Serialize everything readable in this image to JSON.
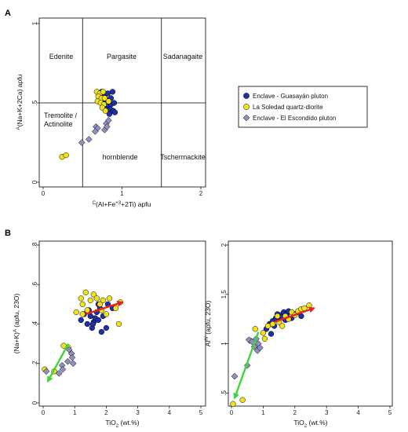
{
  "figure": {
    "panel_a_label": "A",
    "panel_b_label": "B"
  },
  "legend": [
    {
      "label": "Enclave - Guasayán pluton",
      "marker": "circle",
      "color": "#1f2fa8"
    },
    {
      "label": "La Soledad quartz-diorite",
      "marker": "circle",
      "color": "#f2e21a"
    },
    {
      "label": "Enclave - El Escondido pluton",
      "marker": "diamond",
      "color": "#8f8fc0"
    }
  ],
  "chart_data": [
    {
      "type": "scatter",
      "id": "A",
      "xlabel": "C(Al+Fe+3+2Ti) apfu",
      "ylabel": "A(Na+K+2Ca) apfu",
      "xlim": [
        0,
        2
      ],
      "ylim": [
        0,
        1
      ],
      "x_ticks": [
        "0",
        "1",
        "2"
      ],
      "y_ticks": [
        "0",
        ".5",
        "1"
      ],
      "field_boundaries": {
        "x": [
          0.5,
          1.5
        ],
        "y": [
          0.5
        ]
      },
      "field_labels": [
        "Edenite",
        "Pargasite",
        "Sadanagaite",
        "Tremolite /",
        "Actinolite",
        "hornblende",
        "Tschermackite"
      ],
      "series": [
        {
          "name": "Enclave - Guasayán pluton",
          "color": "#1f2fa8",
          "marker": "circle",
          "points": [
            [
              0.74,
              0.57
            ],
            [
              0.78,
              0.55
            ],
            [
              0.82,
              0.56
            ],
            [
              0.88,
              0.57
            ],
            [
              0.81,
              0.52
            ],
            [
              0.86,
              0.53
            ],
            [
              0.78,
              0.5
            ],
            [
              0.82,
              0.49
            ],
            [
              0.86,
              0.49
            ],
            [
              0.9,
              0.5
            ],
            [
              0.8,
              0.46
            ],
            [
              0.85,
              0.46
            ],
            [
              0.89,
              0.45
            ],
            [
              0.84,
              0.43
            ],
            [
              0.91,
              0.44
            ]
          ]
        },
        {
          "name": "La Soledad quartz-diorite",
          "color": "#f2e21a",
          "marker": "circle",
          "points": [
            [
              0.24,
              0.16
            ],
            [
              0.29,
              0.17
            ],
            [
              0.68,
              0.57
            ],
            [
              0.72,
              0.56
            ],
            [
              0.76,
              0.57
            ],
            [
              0.7,
              0.54
            ],
            [
              0.74,
              0.53
            ],
            [
              0.78,
              0.53
            ],
            [
              0.69,
              0.51
            ],
            [
              0.73,
              0.5
            ],
            [
              0.77,
              0.49
            ],
            [
              0.75,
              0.47
            ],
            [
              0.79,
              0.45
            ],
            [
              0.83,
              0.51
            ]
          ]
        },
        {
          "name": "Enclave - El Escondido pluton",
          "color": "#8f8fc0",
          "marker": "diamond",
          "points": [
            [
              0.49,
              0.25
            ],
            [
              0.58,
              0.27
            ],
            [
              0.67,
              0.35
            ],
            [
              0.69,
              0.34
            ],
            [
              0.66,
              0.32
            ],
            [
              0.78,
              0.33
            ],
            [
              0.8,
              0.37
            ],
            [
              0.83,
              0.39
            ],
            [
              0.81,
              0.35
            ]
          ]
        }
      ]
    },
    {
      "type": "scatter",
      "id": "B-left",
      "xlabel": "TiO2 (wt.%)",
      "ylabel": "(Na+K)A (apfu, 23O)",
      "xlim": [
        0,
        5
      ],
      "ylim": [
        0,
        0.8
      ],
      "x_ticks": [
        "0",
        "1",
        "2",
        "3",
        "4",
        "5"
      ],
      "y_ticks": [
        "0",
        ".2",
        ".4",
        ".6",
        ".8"
      ],
      "arrows": [
        {
          "from": [
            1.35,
            0.45
          ],
          "to": [
            2.5,
            0.51
          ],
          "color": "#e8231b"
        },
        {
          "from": [
            0.8,
            0.3
          ],
          "to": [
            0.15,
            0.11
          ],
          "color": "#3fd63a"
        }
      ],
      "series": [
        {
          "name": "Enclave - Guasayán pluton",
          "color": "#1f2fa8",
          "marker": "circle",
          "points": [
            [
              1.2,
              0.42
            ],
            [
              1.3,
              0.45
            ],
            [
              1.4,
              0.4
            ],
            [
              1.45,
              0.47
            ],
            [
              1.5,
              0.44
            ],
            [
              1.55,
              0.38
            ],
            [
              1.6,
              0.41
            ],
            [
              1.65,
              0.43
            ],
            [
              1.7,
              0.46
            ],
            [
              1.75,
              0.42
            ],
            [
              1.8,
              0.48
            ],
            [
              1.85,
              0.36
            ],
            [
              1.9,
              0.44
            ],
            [
              2.0,
              0.38
            ],
            [
              2.05,
              0.5
            ],
            [
              2.2,
              0.48
            ],
            [
              1.58,
              0.4
            ],
            [
              1.75,
              0.5
            ]
          ]
        },
        {
          "name": "La Soledad quartz-diorite",
          "color": "#f2e21a",
          "marker": "circle",
          "points": [
            [
              0.05,
              0.17
            ],
            [
              0.35,
              0.16
            ],
            [
              0.65,
              0.29
            ],
            [
              0.8,
              0.28
            ],
            [
              1.05,
              0.46
            ],
            [
              1.2,
              0.53
            ],
            [
              1.25,
              0.5
            ],
            [
              1.35,
              0.56
            ],
            [
              1.4,
              0.47
            ],
            [
              1.5,
              0.52
            ],
            [
              1.6,
              0.55
            ],
            [
              1.7,
              0.53
            ],
            [
              1.8,
              0.5
            ],
            [
              1.85,
              0.47
            ],
            [
              1.9,
              0.52
            ],
            [
              2.0,
              0.45
            ],
            [
              2.1,
              0.53
            ],
            [
              2.3,
              0.48
            ],
            [
              2.45,
              0.51
            ],
            [
              2.4,
              0.4
            ],
            [
              1.25,
              0.45
            ]
          ]
        },
        {
          "name": "Enclave - El Escondido pluton",
          "color": "#8f8fc0",
          "marker": "diamond",
          "points": [
            [
              0.1,
              0.16
            ],
            [
              0.5,
              0.15
            ],
            [
              0.6,
              0.19
            ],
            [
              0.62,
              0.17
            ],
            [
              0.78,
              0.21
            ],
            [
              0.9,
              0.25
            ],
            [
              0.92,
              0.23
            ],
            [
              0.95,
              0.2
            ],
            [
              0.82,
              0.27
            ]
          ]
        }
      ]
    },
    {
      "type": "scatter",
      "id": "B-right",
      "xlabel": "TiO2 (wt.%)",
      "ylabel": "AlIV (apfu, 23O)",
      "xlim": [
        0,
        5
      ],
      "ylim": [
        0.4,
        2
      ],
      "x_ticks": [
        "0",
        "1",
        "2",
        "3",
        "4",
        "5"
      ],
      "y_ticks": [
        ".5",
        "1",
        "1.5",
        "2"
      ],
      "arrows": [
        {
          "from": [
            1.35,
            1.22
          ],
          "to": [
            2.6,
            1.36
          ],
          "color": "#e8231b"
        },
        {
          "from": [
            0.85,
            1.12
          ],
          "to": [
            0.1,
            0.45
          ],
          "color": "#3fd63a"
        }
      ],
      "series": [
        {
          "name": "Enclave - Guasayán pluton",
          "color": "#1f2fa8",
          "marker": "circle",
          "points": [
            [
              1.1,
              1.15
            ],
            [
              1.2,
              1.2
            ],
            [
              1.3,
              1.23
            ],
            [
              1.35,
              1.18
            ],
            [
              1.4,
              1.26
            ],
            [
              1.45,
              1.3
            ],
            [
              1.5,
              1.25
            ],
            [
              1.55,
              1.29
            ],
            [
              1.6,
              1.27
            ],
            [
              1.65,
              1.32
            ],
            [
              1.7,
              1.24
            ],
            [
              1.75,
              1.3
            ],
            [
              1.8,
              1.33
            ],
            [
              1.9,
              1.26
            ],
            [
              2.0,
              1.3
            ],
            [
              2.1,
              1.32
            ],
            [
              2.2,
              1.28
            ],
            [
              1.25,
              1.1
            ]
          ]
        },
        {
          "name": "La Soledad quartz-diorite",
          "color": "#f2e21a",
          "marker": "circle",
          "points": [
            [
              0.05,
              0.39
            ],
            [
              0.35,
              0.43
            ],
            [
              0.6,
              1.03
            ],
            [
              0.75,
              1.15
            ],
            [
              1.0,
              1.11
            ],
            [
              1.05,
              1.05
            ],
            [
              1.15,
              1.18
            ],
            [
              1.3,
              1.2
            ],
            [
              1.5,
              1.22
            ],
            [
              1.6,
              1.18
            ],
            [
              1.7,
              1.28
            ],
            [
              1.8,
              1.25
            ],
            [
              1.9,
              1.32
            ],
            [
              2.0,
              1.29
            ],
            [
              2.1,
              1.33
            ],
            [
              2.2,
              1.35
            ],
            [
              2.3,
              1.36
            ],
            [
              2.45,
              1.39
            ],
            [
              1.45,
              1.28
            ]
          ]
        },
        {
          "name": "Enclave - El Escondido pluton",
          "color": "#8f8fc0",
          "marker": "diamond",
          "points": [
            [
              0.1,
              0.67
            ],
            [
              0.5,
              0.78
            ],
            [
              0.55,
              1.04
            ],
            [
              0.65,
              1.02
            ],
            [
              0.72,
              0.97
            ],
            [
              0.78,
              1.05
            ],
            [
              0.82,
              0.93
            ],
            [
              0.85,
              1.0
            ],
            [
              0.9,
              0.96
            ]
          ]
        }
      ]
    }
  ]
}
